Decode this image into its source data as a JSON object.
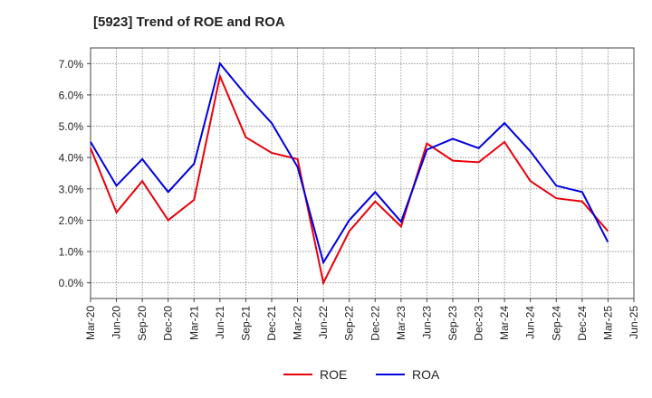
{
  "chart_data": {
    "type": "line",
    "title": "[5923]  Trend of ROE and ROA",
    "xlabel": "",
    "ylabel": "",
    "x": [
      "Mar-20",
      "Jun-20",
      "Sep-20",
      "Dec-20",
      "Mar-21",
      "Jun-21",
      "Sep-21",
      "Dec-21",
      "Mar-22",
      "Jun-22",
      "Sep-22",
      "Dec-22",
      "Mar-23",
      "Jun-23",
      "Sep-23",
      "Dec-23",
      "Mar-24",
      "Jun-24",
      "Sep-24",
      "Dec-24",
      "Mar-25",
      "Jun-25"
    ],
    "ylim": [
      -0.5,
      7.5
    ],
    "yticks": [
      0.0,
      1.0,
      2.0,
      3.0,
      4.0,
      5.0,
      6.0,
      7.0
    ],
    "ytick_labels": [
      "0.0%",
      "1.0%",
      "2.0%",
      "3.0%",
      "4.0%",
      "5.0%",
      "6.0%",
      "7.0%"
    ],
    "grid": true,
    "legend_position": "bottom",
    "series": [
      {
        "name": "ROE",
        "color": "#e8000b",
        "values": [
          4.3,
          2.25,
          3.25,
          2.0,
          2.65,
          6.6,
          4.65,
          4.15,
          3.95,
          0.0,
          1.65,
          2.6,
          1.8,
          4.45,
          3.9,
          3.85,
          4.5,
          3.25,
          2.7,
          2.6,
          1.65,
          null
        ]
      },
      {
        "name": "ROA",
        "color": "#0000e0",
        "values": [
          4.5,
          3.1,
          3.95,
          2.9,
          3.8,
          7.0,
          6.0,
          5.1,
          3.7,
          0.65,
          2.0,
          2.9,
          1.95,
          4.25,
          4.6,
          4.3,
          5.1,
          4.2,
          3.1,
          2.9,
          1.3,
          null
        ]
      }
    ]
  }
}
